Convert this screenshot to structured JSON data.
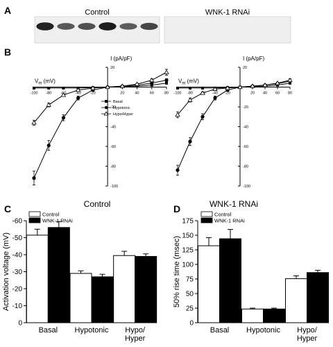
{
  "panels": {
    "A": {
      "letter": "A",
      "lanes": [
        {
          "label": "Control",
          "band_intensities": [
            0.92,
            0.62,
            0.66,
            0.95,
            0.6,
            0.72
          ]
        },
        {
          "label": "WNK-1 RNAi",
          "band_intensities": [
            0,
            0,
            0,
            0,
            0,
            0
          ]
        }
      ]
    },
    "B": {
      "letter": "B",
      "legend": [
        "Basal",
        "Hypotonic",
        "Hypo/Hyper"
      ],
      "chart_data": [
        {
          "type": "line",
          "title": "Control",
          "xlabel": "Vm (mV)",
          "ylabel": "I (pA/pF)",
          "xlim": [
            -100,
            80
          ],
          "ylim": [
            -100,
            20
          ],
          "xticks": [
            -100,
            -80,
            -60,
            -40,
            -20,
            20,
            40,
            60,
            80
          ],
          "yticks": [
            -100,
            -80,
            -60,
            -40,
            -20,
            20
          ],
          "x": [
            -100,
            -80,
            -60,
            -40,
            -20,
            0,
            20,
            40,
            60,
            80
          ],
          "series": [
            {
              "name": "Basal",
              "marker": "square",
              "values": [
                -1,
                -1,
                -1,
                -1,
                -0.5,
                0,
                0.5,
                1,
                2,
                4
              ],
              "errors": [
                0.3,
                0.3,
                0.3,
                0.3,
                0.3,
                0.2,
                0.3,
                0.4,
                0.6,
                1
              ]
            },
            {
              "name": "Hypotonic",
              "marker": "circle",
              "values": [
                -92,
                -59,
                -31,
                -11,
                -3,
                0,
                1,
                2,
                4,
                7
              ],
              "errors": [
                7,
                5,
                3,
                2,
                1,
                0.5,
                0.5,
                0.8,
                1,
                1.5
              ]
            },
            {
              "name": "Hypo/Hyper",
              "marker": "triangle",
              "values": [
                -36,
                -18,
                -8,
                -3,
                -1,
                0,
                1,
                3,
                7,
                15
              ],
              "errors": [
                2.5,
                2,
                1,
                0.8,
                0.5,
                0.3,
                0.5,
                1,
                1.5,
                3
              ]
            }
          ]
        },
        {
          "type": "line",
          "title": "WNK-1 RNAi",
          "xlabel": "Vm (mV)",
          "ylabel": "I (pA/pF)",
          "xlim": [
            -100,
            80
          ],
          "ylim": [
            -100,
            20
          ],
          "xticks": [
            -100,
            -80,
            -60,
            -40,
            -20,
            20,
            40,
            60,
            80
          ],
          "yticks": [
            -100,
            -80,
            -60,
            -40,
            -20,
            20
          ],
          "x": [
            -100,
            -80,
            -60,
            -40,
            -20,
            0,
            20,
            40,
            60,
            80
          ],
          "series": [
            {
              "name": "Basal",
              "marker": "square",
              "values": [
                -1,
                -1,
                -1,
                -1,
                -0.5,
                0,
                0.5,
                1,
                2,
                4
              ],
              "errors": [
                0.3,
                0.3,
                0.3,
                0.3,
                0.3,
                0.2,
                0.3,
                0.4,
                0.6,
                1
              ]
            },
            {
              "name": "Hypotonic",
              "marker": "circle",
              "values": [
                -84,
                -55,
                -30,
                -11,
                -3,
                0,
                1,
                2,
                3.5,
                6
              ],
              "errors": [
                5,
                4,
                3,
                2,
                1,
                0.5,
                0.5,
                0.8,
                1,
                1.5
              ]
            },
            {
              "name": "Hypo/Hyper",
              "marker": "triangle",
              "values": [
                -28,
                -13,
                -6,
                -2,
                -1,
                0,
                1,
                2,
                4,
                7
              ],
              "errors": [
                3,
                2,
                1,
                0.8,
                0.5,
                0.3,
                0.5,
                0.8,
                1,
                1.5
              ]
            }
          ]
        }
      ]
    },
    "C": {
      "letter": "C",
      "chart_data": {
        "type": "bar",
        "categories": [
          "Basal",
          "Hypotonic",
          "Hypo/\nHyper"
        ],
        "series": [
          {
            "name": "Control",
            "values": [
              -51.5,
              -29,
              -39.5
            ],
            "errors": [
              3.5,
              1.5,
              2.5
            ],
            "color": "#ffffff"
          },
          {
            "name": "WNK-1 RNAi",
            "values": [
              -56,
              -27,
              -39
            ],
            "errors": [
              3.5,
              1.5,
              1.5
            ],
            "color": "#000000"
          }
        ],
        "ylabel": "Activation voltage (mV)",
        "ylim": [
          0,
          -60
        ],
        "yticks": [
          0,
          -10,
          -20,
          -30,
          -40,
          -50,
          -60
        ],
        "inverted": true,
        "legend_position": "top-left"
      }
    },
    "D": {
      "letter": "D",
      "chart_data": {
        "type": "bar",
        "categories": [
          "Basal",
          "Hypotonic",
          "Hypo/\nHyper"
        ],
        "series": [
          {
            "name": "Control",
            "values": [
              132,
              23.5,
              75.5
            ],
            "errors": [
              14,
              1.5,
              5
            ],
            "color": "#ffffff"
          },
          {
            "name": "WNK-1 RNAi",
            "values": [
              144,
              23.5,
              86
            ],
            "errors": [
              16,
              1.5,
              4
            ],
            "color": "#000000"
          }
        ],
        "ylabel": "50% rise time (msec)",
        "ylim": [
          0,
          175
        ],
        "yticks": [
          0,
          25,
          50,
          75,
          100,
          125,
          150,
          175
        ],
        "legend_position": "top-left"
      }
    }
  }
}
